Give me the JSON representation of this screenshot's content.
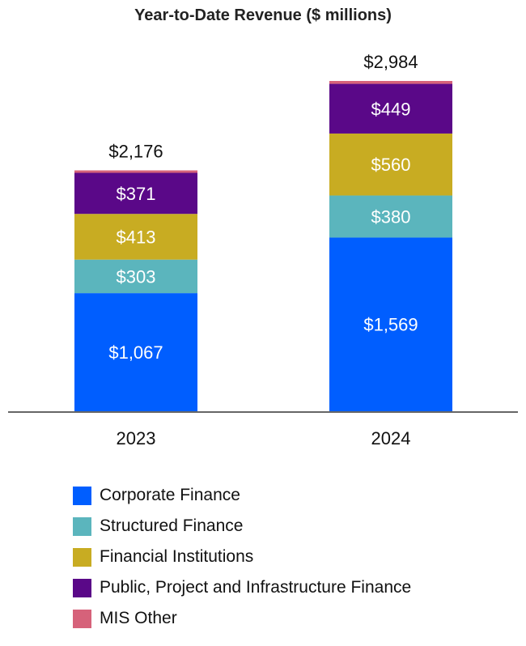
{
  "chart_data": {
    "type": "bar",
    "stacked": true,
    "title": "Year-to-Date Revenue ($ millions)",
    "categories": [
      "2023",
      "2024"
    ],
    "totals": [
      2176,
      2984
    ],
    "total_labels": [
      "$2,176",
      "$2,984"
    ],
    "ylim": [
      0,
      2984
    ],
    "grid": false,
    "legend_position": "bottom",
    "series": [
      {
        "name": "Corporate Finance",
        "color": "#005EFF",
        "values": [
          1067,
          1569
        ],
        "labels": [
          "$1,067",
          "$1,569"
        ]
      },
      {
        "name": "Structured Finance",
        "color": "#5BB5BD",
        "values": [
          303,
          380
        ],
        "labels": [
          "$303",
          "$380"
        ]
      },
      {
        "name": "Financial Institutions",
        "color": "#C8AC22",
        "values": [
          413,
          560
        ],
        "labels": [
          "$413",
          "$560"
        ]
      },
      {
        "name": "Public, Project and Infrastructure Finance",
        "color": "#5A0888",
        "values": [
          371,
          449
        ],
        "labels": [
          "$371",
          "$449"
        ]
      },
      {
        "name": "MIS Other",
        "color": "#D6627A",
        "values": [
          22,
          26
        ],
        "labels": [
          "",
          ""
        ]
      }
    ]
  }
}
